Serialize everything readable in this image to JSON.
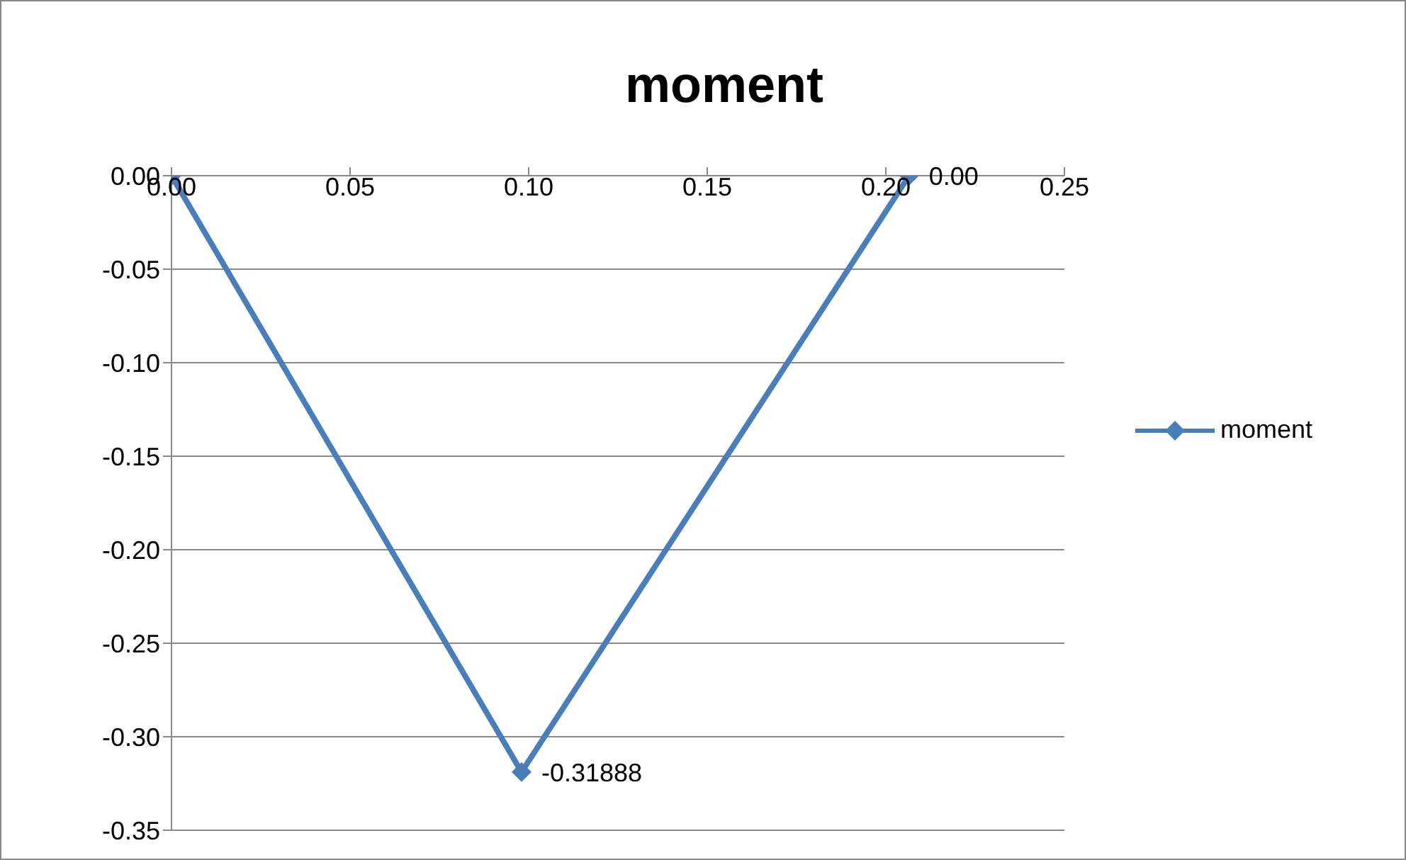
{
  "chart_data": {
    "type": "line",
    "title": "moment",
    "x": [
      0,
      0.098,
      0.2065
    ],
    "series": [
      {
        "name": "moment",
        "color": "#4a7ebb",
        "values": [
          0,
          -0.31888,
          0
        ],
        "value_labels": [
          null,
          "-0.31888",
          "0.00"
        ]
      }
    ],
    "xlim": [
      0,
      0.25
    ],
    "xticks": [
      {
        "value": 0,
        "label": "0.00"
      },
      {
        "value": 0.05,
        "label": "0.05"
      },
      {
        "value": 0.1,
        "label": "0.10"
      },
      {
        "value": 0.15,
        "label": "0.15"
      },
      {
        "value": 0.2,
        "label": "0.20"
      },
      {
        "value": 0.25,
        "label": "0.25"
      }
    ],
    "ylim": [
      -0.35,
      0
    ],
    "yticks": [
      {
        "value": 0,
        "label": "0.00"
      },
      {
        "value": -0.05,
        "label": "-0.05"
      },
      {
        "value": -0.1,
        "label": "-0.10"
      },
      {
        "value": -0.15,
        "label": "-0.15"
      },
      {
        "value": -0.2,
        "label": "-0.20"
      },
      {
        "value": -0.25,
        "label": "-0.25"
      },
      {
        "value": -0.3,
        "label": "-0.30"
      },
      {
        "value": -0.35,
        "label": "-0.35"
      }
    ],
    "grid": "y",
    "legend": "right",
    "marker": "diamond",
    "line_style": "solid"
  }
}
